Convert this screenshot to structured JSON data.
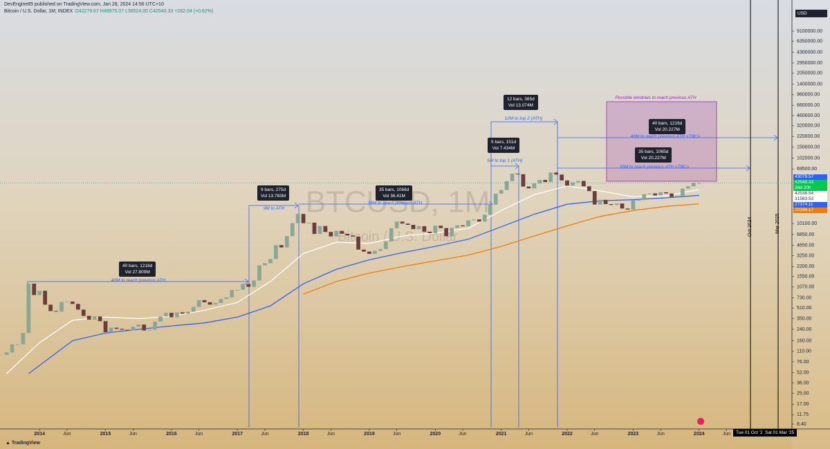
{
  "header": {
    "publisher": "DevEngine85 published on TradingView.com, Jan 28, 2024 14:56 UTC+10",
    "symbol": "Bitcoin / U.S. Dollar, 1M, INDEX",
    "ohlc": "O42279.67 H48975.07 L38524.00 C42540.33 +262.04 (+0.62%)",
    "currency": "USD"
  },
  "chart_data": {
    "type": "candlestick",
    "watermark": "BTCUSD, 1M",
    "watermark_sub": "Bitcoin / U.S. Dollar",
    "log_scale": true,
    "up_color": "#8aa795",
    "down_color": "#6b3c3c",
    "xlim": [
      -1.2,
      142.9
    ],
    "xticks": [
      {
        "value": 6,
        "label": "2014"
      },
      {
        "value": 11,
        "label": "Jun"
      },
      {
        "value": 18,
        "label": "2015"
      },
      {
        "value": 23,
        "label": "Jun"
      },
      {
        "value": 30,
        "label": "2016"
      },
      {
        "value": 35,
        "label": "Jun"
      },
      {
        "value": 42,
        "label": "2017"
      },
      {
        "value": 47,
        "label": "Jun"
      },
      {
        "value": 54,
        "label": "2018"
      },
      {
        "value": 59,
        "label": "Jun"
      },
      {
        "value": 66,
        "label": "2019"
      },
      {
        "value": 71,
        "label": "Jun"
      },
      {
        "value": 78,
        "label": "2020"
      },
      {
        "value": 83,
        "label": "Jun"
      },
      {
        "value": 90,
        "label": "2021"
      },
      {
        "value": 95,
        "label": "Jun"
      },
      {
        "value": 102,
        "label": "2022"
      },
      {
        "value": 107,
        "label": "Jun"
      },
      {
        "value": 114,
        "label": "2023"
      },
      {
        "value": 119,
        "label": "Jun"
      },
      {
        "value": 126,
        "label": "2024"
      },
      {
        "value": 131,
        "label": "Jun"
      }
    ],
    "ylim": [
      7.08,
      21400000
    ],
    "yticks": [
      {
        "value": 9100000,
        "label": "9100000.00"
      },
      {
        "value": 6350000,
        "label": "6350000.00"
      },
      {
        "value": 4300000,
        "label": "4300000.00"
      },
      {
        "value": 2950000,
        "label": "2950000.00"
      },
      {
        "value": 2050000,
        "label": "2050000.00"
      },
      {
        "value": 1400000,
        "label": "1400000.00"
      },
      {
        "value": 960000,
        "label": "960000.00"
      },
      {
        "value": 660000,
        "label": "660000.00"
      },
      {
        "value": 460000,
        "label": "460000.00"
      },
      {
        "value": 320000,
        "label": "320000.00"
      },
      {
        "value": 220000,
        "label": "220000.00"
      },
      {
        "value": 150000,
        "label": "150000.00"
      },
      {
        "value": 102000,
        "label": "102000.00"
      },
      {
        "value": 69500,
        "label": "69500.00"
      },
      {
        "value": 10100,
        "label": "10100.00"
      },
      {
        "value": 6850,
        "label": "6850.00"
      },
      {
        "value": 4650,
        "label": "4650.00"
      },
      {
        "value": 3250,
        "label": "3250.00"
      },
      {
        "value": 2200,
        "label": "2200.00"
      },
      {
        "value": 1550,
        "label": "1550.00"
      },
      {
        "value": 1070,
        "label": "1070.00"
      },
      {
        "value": 730,
        "label": "730.00"
      },
      {
        "value": 510,
        "label": "510.00"
      },
      {
        "value": 350,
        "label": "350.00"
      },
      {
        "value": 240,
        "label": "240.00"
      },
      {
        "value": 160,
        "label": "160.00"
      },
      {
        "value": 110,
        "label": "110.00"
      },
      {
        "value": 76,
        "label": "76.00"
      },
      {
        "value": 52,
        "label": "52.00"
      },
      {
        "value": 36,
        "label": "36.00"
      },
      {
        "value": 25,
        "label": "25.00"
      },
      {
        "value": 17,
        "label": "17.00"
      },
      {
        "value": 11.75,
        "label": "11.75"
      },
      {
        "value": 8.4,
        "label": "8.40"
      }
    ],
    "open": [
      97,
      106,
      141,
      141,
      211,
      1205,
      805,
      938,
      573,
      458,
      447,
      630,
      640,
      589,
      481,
      386,
      338,
      378,
      320,
      217,
      254,
      244,
      236,
      230,
      263,
      284,
      230,
      236,
      314,
      378,
      430,
      368,
      437,
      416,
      448,
      531,
      673,
      624,
      575,
      609,
      701,
      742,
      964,
      970,
      1190,
      1080,
      1348,
      2300,
      2480,
      2875,
      4703,
      4338,
      6468,
      10233,
      14156,
      10221,
      10397,
      6973,
      9240,
      7495,
      6404,
      7780,
      7037,
      6625,
      6371,
      4017,
      3742,
      3457,
      3854,
      4105,
      5350,
      8574,
      10817,
      10085,
      9630,
      8293,
      9199,
      7569,
      7193,
      9350,
      8599,
      6438,
      8658,
      9461,
      9137,
      11323,
      11681,
      10784,
      13804,
      19700,
      28990,
      33114,
      45137,
      58918,
      57750,
      37332,
      35040,
      41626,
      47166,
      43790,
      61318,
      57005,
      46306,
      38483,
      43193,
      45538,
      37714,
      31792,
      19785,
      23336,
      20050,
      19431,
      20495,
      17168,
      16547,
      23139,
      23147,
      28478,
      29268,
      27219,
      30477,
      29232,
      25931,
      26967,
      34667,
      37720,
      42279.67
    ],
    "close": [
      106,
      141,
      141,
      211,
      1205,
      805,
      938,
      573,
      458,
      447,
      630,
      640,
      589,
      481,
      386,
      338,
      378,
      320,
      217,
      254,
      244,
      236,
      230,
      263,
      284,
      230,
      236,
      314,
      378,
      430,
      368,
      437,
      416,
      448,
      531,
      673,
      624,
      575,
      609,
      701,
      742,
      964,
      970,
      1190,
      1080,
      1348,
      2300,
      2480,
      2875,
      4703,
      4338,
      6468,
      10233,
      14156,
      10221,
      10397,
      6973,
      9240,
      7495,
      6404,
      7780,
      7037,
      6625,
      6371,
      4017,
      3742,
      3457,
      3854,
      4105,
      5350,
      8574,
      10817,
      10085,
      9630,
      8293,
      9199,
      7569,
      7193,
      9350,
      8599,
      6438,
      8658,
      9461,
      9137,
      11323,
      11681,
      10784,
      13804,
      19700,
      28990,
      33114,
      45137,
      58918,
      57750,
      37332,
      35040,
      41626,
      47166,
      43790,
      61318,
      57005,
      46306,
      38483,
      43193,
      45538,
      37714,
      31792,
      19785,
      23336,
      20050,
      19431,
      20495,
      17168,
      16547,
      23139,
      23147,
      28478,
      29268,
      27219,
      30477,
      29232,
      25931,
      26967,
      34667,
      37720,
      42265,
      42540.33
    ],
    "series": [
      {
        "color": "#ffffff",
        "x": [
          0,
          6,
          12,
          18,
          24,
          30,
          36,
          42,
          48,
          54,
          60,
          66,
          72,
          78,
          84,
          90,
          96,
          102,
          108,
          114,
          120,
          126
        ],
        "values": [
          50,
          150,
          330,
          370,
          350,
          380,
          470,
          620,
          1300,
          3500,
          5200,
          5000,
          6500,
          7200,
          8500,
          16000,
          28000,
          38000,
          32000,
          26000,
          27000,
          33500
        ]
      },
      {
        "color": "#2962ff",
        "x": [
          4,
          12,
          18,
          24,
          30,
          36,
          42,
          48,
          54,
          60,
          66,
          72,
          78,
          84,
          90,
          96,
          102,
          108,
          114,
          120,
          126
        ],
        "values": [
          50,
          160,
          210,
          240,
          270,
          300,
          370,
          550,
          1200,
          2000,
          2800,
          3600,
          4500,
          5800,
          9000,
          14000,
          20000,
          22500,
          23500,
          25000,
          27374.11
        ]
      },
      {
        "color": "#f57c00",
        "x": [
          54,
          60,
          66,
          72,
          78,
          84,
          90,
          96,
          102,
          108,
          114,
          120,
          126
        ],
        "values": [
          830,
          1300,
          1750,
          2200,
          2700,
          3300,
          4500,
          6500,
          9300,
          13000,
          16000,
          18500,
          20294.17
        ]
      }
    ],
    "price_tags": [
      {
        "label": "43079.57",
        "color": "#2962ff"
      },
      {
        "label": "42540.33",
        "color": "#00c853"
      },
      {
        "label": "36d 20h",
        "color": "#00c853"
      },
      {
        "label": "42538.54",
        "color": "#ffffff"
      },
      {
        "label": "31583.53",
        "color": "#ffffff"
      },
      {
        "label": "27374.11",
        "color": "#2962ff"
      },
      {
        "label": "20294.17",
        "color": "#f57c00"
      }
    ],
    "annotations": [
      {
        "bars": "40 bars, 1216d",
        "vol": "Vol 27.809M",
        "label": "40M to reach previous ATH"
      },
      {
        "bars": "9 bars, 275d",
        "vol": "Vol 13.783M",
        "label": "9M to ATH"
      },
      {
        "bars": "35 bars, 1066d",
        "vol": "Vol 36.41M",
        "label": "35M to reach previous ATH"
      },
      {
        "bars": "5 bars, 151d",
        "vol": "Vol 7.434M",
        "label": "5M to top 1 (ATH)"
      },
      {
        "bars": "12 bars, 365d",
        "vol": "Vol 13.074M",
        "label": "12M to top 2 (ATH)"
      },
      {
        "bars": "40 bars, 1216d",
        "vol": "Vol 20.227M",
        "label": "40M to reach previous ATH <TBC>"
      },
      {
        "bars": "35 bars, 1065d",
        "vol": "Vol 20.227M",
        "label": "35M to reach previous ATH <TBC>"
      }
    ],
    "window_title": "Possible windows to reach previous ATH",
    "vertical_labels": [
      "Oct 2024",
      "Mar 2025"
    ],
    "time_tags": [
      "Tue 01 Oct '2",
      "Sat 01 Mar '25"
    ]
  },
  "footer": "TradingView"
}
